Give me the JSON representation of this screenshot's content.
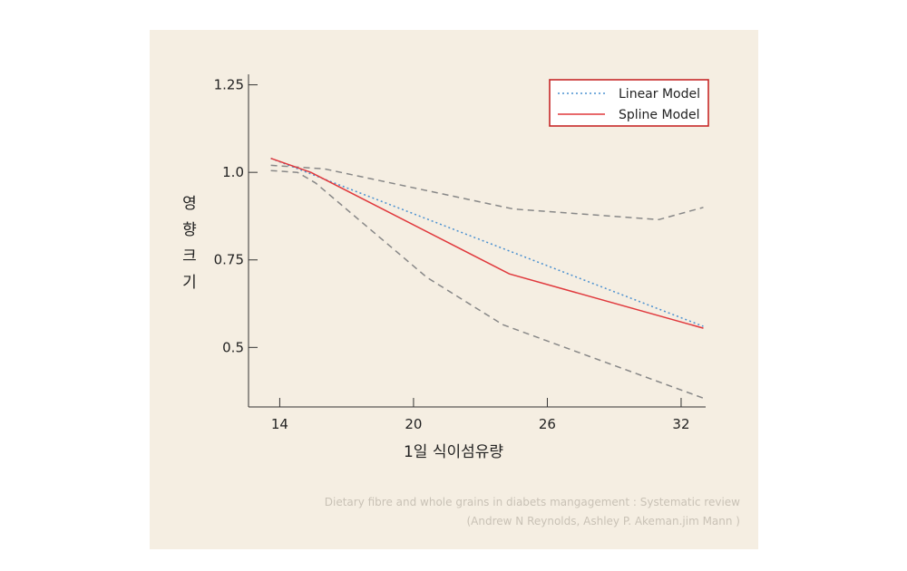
{
  "chart_data": {
    "type": "line",
    "xlabel": "1일 식이섬유량",
    "ylabel": "영향크기",
    "x_ticks": [
      14,
      20,
      26,
      32
    ],
    "y_ticks": [
      {
        "value": 0.5,
        "label": "0.5"
      },
      {
        "value": 0.75,
        "label": "0.75"
      },
      {
        "value": 1.0,
        "label": "1.0"
      },
      {
        "value": 1.25,
        "label": "1.25"
      }
    ],
    "xlim": [
      12.6,
      33.1
    ],
    "ylim": [
      0.33,
      1.28
    ],
    "legend_position": "top-right",
    "series": [
      {
        "name": "Linear Model",
        "style": "dotted",
        "color": "#4a90d0",
        "points": [
          [
            13.6,
            1.04
          ],
          [
            33.0,
            0.56
          ]
        ]
      },
      {
        "name": "Spline Model",
        "style": "solid",
        "color": "#e0383c",
        "points": [
          [
            13.6,
            1.04
          ],
          [
            15.4,
            1.0
          ],
          [
            24.3,
            0.71
          ],
          [
            33.0,
            0.555
          ]
        ]
      },
      {
        "style": "dashed",
        "color": "#888888",
        "points": [
          [
            13.6,
            1.02
          ],
          [
            16.0,
            1.01
          ],
          [
            24.5,
            0.895
          ],
          [
            31.0,
            0.865
          ],
          [
            33.0,
            0.9
          ]
        ]
      },
      {
        "style": "dashed",
        "color": "#888888",
        "points": [
          [
            13.6,
            1.005
          ],
          [
            14.8,
            1.0
          ],
          [
            15.6,
            0.97
          ],
          [
            20.6,
            0.7
          ],
          [
            24.0,
            0.565
          ],
          [
            33.0,
            0.355
          ]
        ]
      }
    ]
  },
  "credit": {
    "line1": "Dietary fibre and whole grains in diabets mangagement : Systematic review",
    "line2": "(Andrew N Reynolds, Ashley P. Akeman.jim Mann )"
  }
}
